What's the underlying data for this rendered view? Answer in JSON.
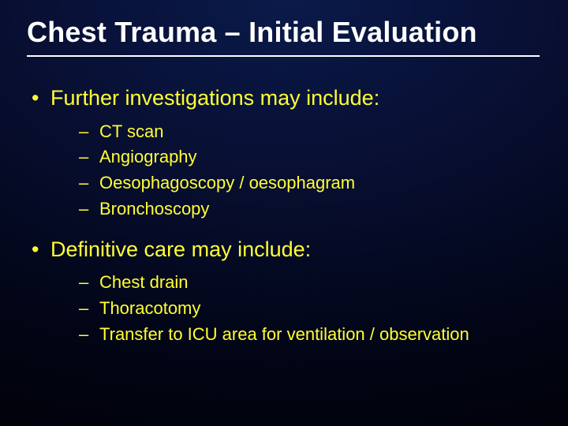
{
  "title": "Chest Trauma – Initial Evaluation",
  "title_color": "#ffffff",
  "title_fontsize": 36,
  "rule_color": "#ffffff",
  "body_color": "#ffff33",
  "background_gradient": {
    "type": "radial",
    "colors": [
      "#0a1a4a",
      "#081035",
      "#020515",
      "#000005"
    ]
  },
  "bullets": [
    {
      "text": "Further investigations may include:",
      "fontsize": 27,
      "sub": [
        {
          "text": "CT scan",
          "fontsize": 22
        },
        {
          "text": "Angiography",
          "fontsize": 22
        },
        {
          "text": "Oesophagoscopy / oesophagram",
          "fontsize": 22
        },
        {
          "text": "Bronchoscopy",
          "fontsize": 22
        }
      ]
    },
    {
      "text": "Definitive care may include:",
      "fontsize": 27,
      "sub": [
        {
          "text": "Chest drain",
          "fontsize": 22
        },
        {
          "text": "Thoracotomy",
          "fontsize": 22
        },
        {
          "text": "Transfer to ICU area for ventilation / observation",
          "fontsize": 22
        }
      ]
    }
  ]
}
